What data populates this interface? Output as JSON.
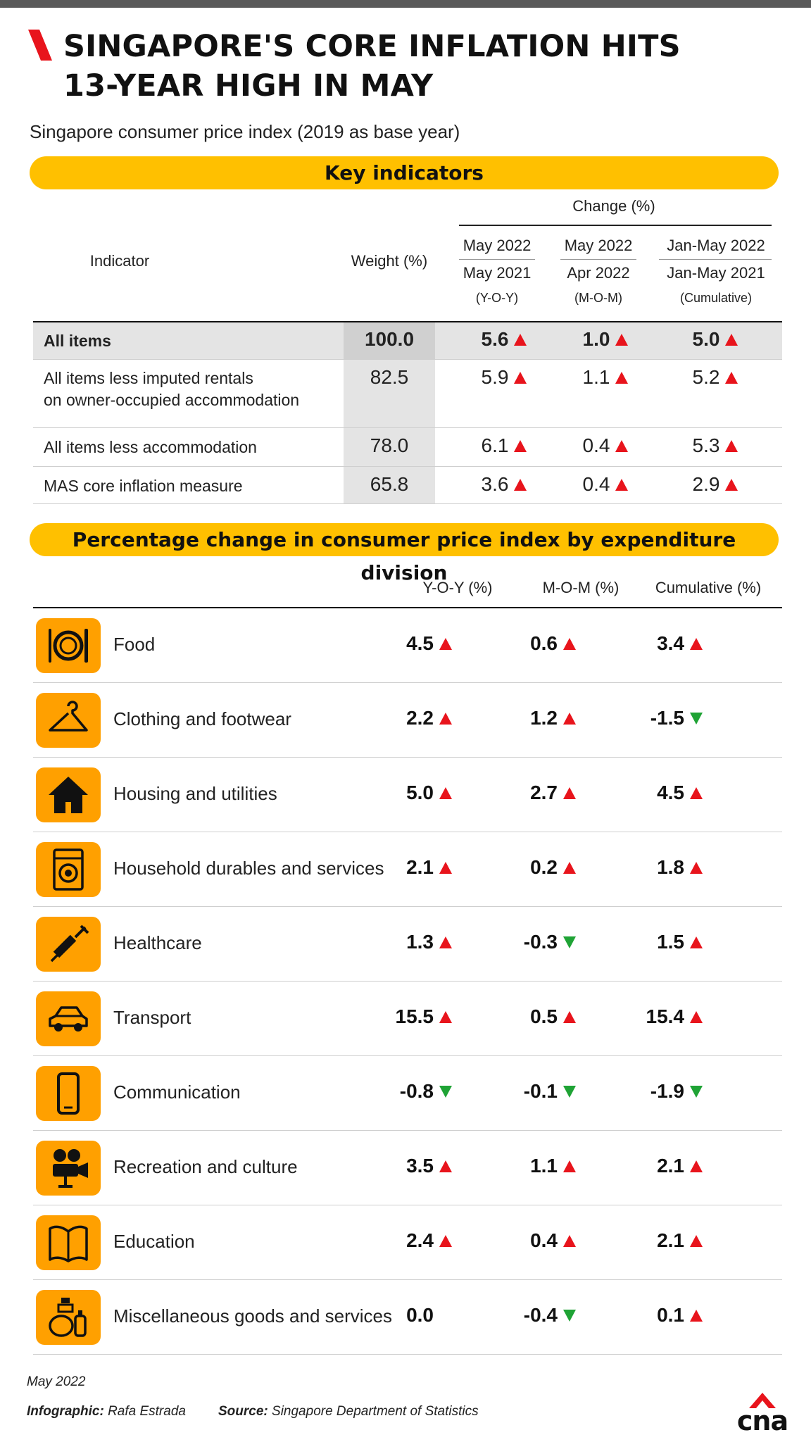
{
  "title_line1": "SINGAPORE'S CORE INFLATION HITS",
  "title_line2": "13-YEAR HIGH IN MAY",
  "subtitle": "Singapore consumer price index (2019 as base year)",
  "key_indicators": {
    "heading": "Key indicators",
    "change_header": "Change (%)",
    "indicator_header": "Indicator",
    "weight_header": "Weight (%)",
    "col1": [
      "May 2022",
      "May 2021",
      "(Y-O-Y)"
    ],
    "col2": [
      "May 2022",
      "Apr 2022",
      "(M-O-M)"
    ],
    "col3": [
      "Jan-May 2022",
      "Jan-May 2021",
      "(Cumulative)"
    ],
    "rows": [
      {
        "name1": "All items",
        "name2": "",
        "weight": "100.0",
        "yoy": "5.6",
        "mom": "1.0",
        "cum": "5.0",
        "yoy_dir": "up",
        "mom_dir": "up",
        "cum_dir": "up"
      },
      {
        "name1": "All items less imputed rentals",
        "name2": "on owner-occupied accommodation",
        "weight": "82.5",
        "yoy": "5.9",
        "mom": "1.1",
        "cum": "5.2",
        "yoy_dir": "up",
        "mom_dir": "up",
        "cum_dir": "up"
      },
      {
        "name1": "All items less accommodation",
        "name2": "",
        "weight": "78.0",
        "yoy": "6.1",
        "mom": "0.4",
        "cum": "5.3",
        "yoy_dir": "up",
        "mom_dir": "up",
        "cum_dir": "up"
      },
      {
        "name1": "MAS core inflation measure",
        "name2": "",
        "weight": "65.8",
        "yoy": "3.6",
        "mom": "0.4",
        "cum": "2.9",
        "yoy_dir": "up",
        "mom_dir": "up",
        "cum_dir": "up"
      }
    ]
  },
  "expenditure": {
    "heading": "Percentage change in consumer price index by expenditure division",
    "col_yoy": "Y-O-Y (%)",
    "col_mom": "M-O-M (%)",
    "col_cum": "Cumulative (%)"
  },
  "chart_data": {
    "type": "table",
    "columns": [
      "Y-O-Y (%)",
      "M-O-M (%)",
      "Cumulative (%)"
    ],
    "rows": [
      {
        "category": "Food",
        "icon": "plate-cutlery-icon",
        "values": [
          "4.5",
          "0.6",
          "3.4"
        ],
        "dirs": [
          "up",
          "up",
          "up"
        ]
      },
      {
        "category": "Clothing and footwear",
        "icon": "hanger-icon",
        "values": [
          "2.2",
          "1.2",
          "-1.5"
        ],
        "dirs": [
          "up",
          "up",
          "down"
        ]
      },
      {
        "category": "Housing and utilities",
        "icon": "house-icon",
        "values": [
          "5.0",
          "2.7",
          "4.5"
        ],
        "dirs": [
          "up",
          "up",
          "up"
        ]
      },
      {
        "category": "Household durables and services",
        "icon": "washing-machine-icon",
        "values": [
          "2.1",
          "0.2",
          "1.8"
        ],
        "dirs": [
          "up",
          "up",
          "up"
        ]
      },
      {
        "category": "Healthcare",
        "icon": "syringe-icon",
        "values": [
          "1.3",
          "-0.3",
          "1.5"
        ],
        "dirs": [
          "up",
          "down",
          "up"
        ]
      },
      {
        "category": "Transport",
        "icon": "car-icon",
        "values": [
          "15.5",
          "0.5",
          "15.4"
        ],
        "dirs": [
          "up",
          "up",
          "up"
        ]
      },
      {
        "category": "Communication",
        "icon": "mobile-phone-icon",
        "values": [
          "-0.8",
          "-0.1",
          "-1.9"
        ],
        "dirs": [
          "down",
          "down",
          "down"
        ]
      },
      {
        "category": "Recreation and culture",
        "icon": "movie-camera-icon",
        "values": [
          "3.5",
          "1.1",
          "2.1"
        ],
        "dirs": [
          "up",
          "up",
          "up"
        ]
      },
      {
        "category": "Education",
        "icon": "open-book-icon",
        "values": [
          "2.4",
          "0.4",
          "2.1"
        ],
        "dirs": [
          "up",
          "up",
          "up"
        ]
      },
      {
        "category": "Miscellaneous goods and services",
        "icon": "toiletries-icon",
        "values": [
          "0.0",
          "-0.4",
          "0.1"
        ],
        "dirs": [
          "none",
          "down",
          "up"
        ]
      }
    ]
  },
  "colors": {
    "accent": "#ffc000",
    "icon_bg": "#ffa000",
    "up": "#e8141c",
    "down": "#1fa335",
    "brand": "#e8141c"
  },
  "footer": {
    "date": "May 2022",
    "credit_label": "Infographic:",
    "credit_name": "Rafa Estrada",
    "source_label": "Source:",
    "source_name": "Singapore Department of Statistics",
    "logo_text": "cna"
  }
}
